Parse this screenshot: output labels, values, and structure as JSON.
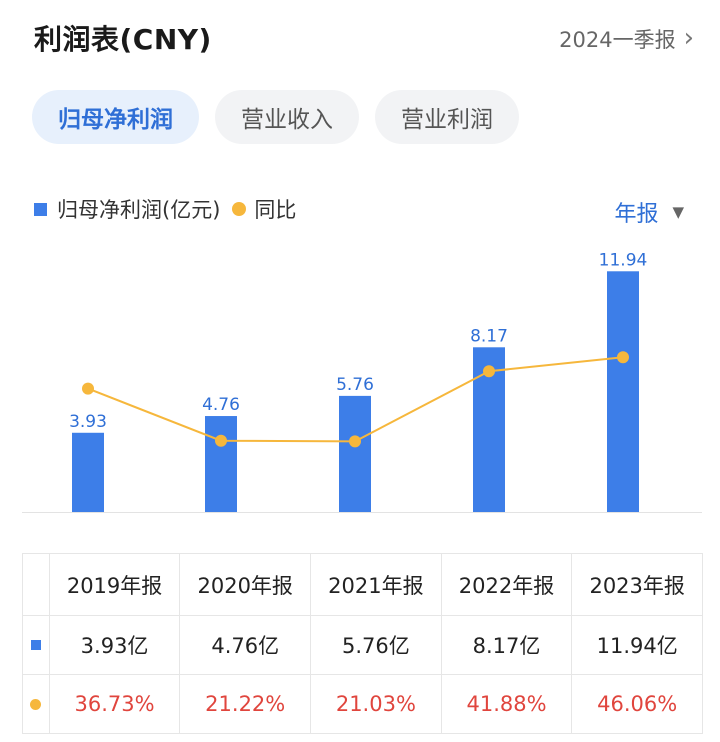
{
  "header": {
    "title": "利润表(CNY)",
    "period_label": "2024一季报",
    "chevron_glyph": "›"
  },
  "tabs": [
    {
      "label": "归母净利润",
      "active": true
    },
    {
      "label": "营业收入",
      "active": false
    },
    {
      "label": "营业利润",
      "active": false
    }
  ],
  "legend": {
    "bar_label": "归母净利润(亿元)",
    "line_label": "同比"
  },
  "report_select": {
    "value": "年报",
    "caret_glyph": "▼"
  },
  "colors": {
    "bar": "#3d7ee8",
    "line": "#f6b73c",
    "value_label": "#2f6fd6",
    "negative_highlight": "#e0453d"
  },
  "chart_data": {
    "type": "bar",
    "categories": [
      "2019年报",
      "2020年报",
      "2021年报",
      "2022年报",
      "2023年报"
    ],
    "series": [
      {
        "name": "归母净利润(亿元)",
        "type": "bar",
        "values": [
          3.93,
          4.76,
          5.76,
          8.17,
          11.94
        ]
      },
      {
        "name": "同比",
        "type": "line",
        "values": [
          36.73,
          21.22,
          21.03,
          41.88,
          46.06
        ]
      }
    ],
    "bar_labels": [
      "3.93",
      "4.76",
      "5.76",
      "8.17",
      "11.94"
    ],
    "ylim_bar": [
      0,
      12.5
    ],
    "ylim_line": [
      0,
      75
    ]
  },
  "table": {
    "headers": [
      "2019年报",
      "2020年报",
      "2021年报",
      "2022年报",
      "2023年报"
    ],
    "profit_row": [
      "3.93亿",
      "4.76亿",
      "5.76亿",
      "8.17亿",
      "11.94亿"
    ],
    "yoy_row": [
      "36.73%",
      "21.22%",
      "21.03%",
      "41.88%",
      "46.06%"
    ]
  }
}
